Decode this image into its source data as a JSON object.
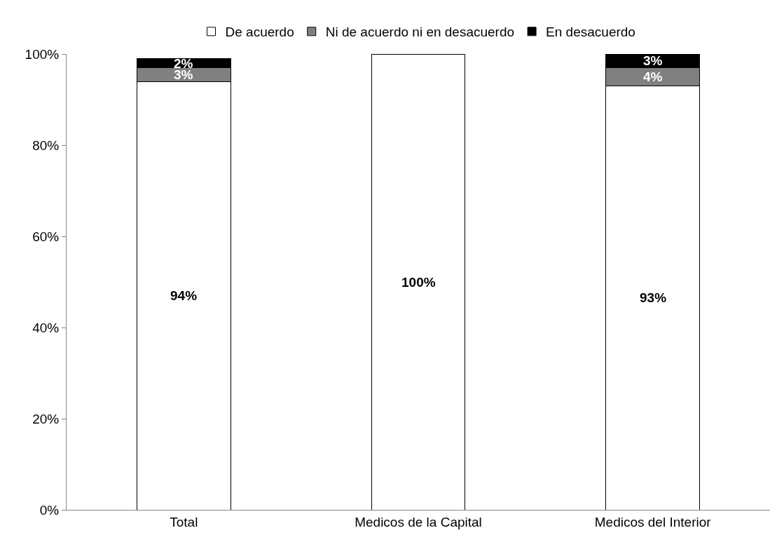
{
  "chart_data": {
    "type": "bar",
    "stacked": true,
    "categories": [
      "Total",
      "Medicos de la Capital",
      "Medicos del Interior"
    ],
    "series": [
      {
        "name": "De acuerdo",
        "color": "#ffffff",
        "values": [
          94,
          100,
          93
        ],
        "value_labels": [
          "94%",
          "100%",
          "93%"
        ]
      },
      {
        "name": "Ni de acuerdo ni en desacuerdo",
        "color": "#808080",
        "values": [
          3,
          0,
          4
        ],
        "value_labels": [
          "3%",
          null,
          "4%"
        ]
      },
      {
        "name": "En desacuerdo",
        "color": "#000000",
        "values": [
          2,
          0,
          3
        ],
        "value_labels": [
          "2%",
          null,
          "3%"
        ]
      }
    ],
    "ylim": [
      0,
      100
    ],
    "yticks": [
      {
        "value": 0,
        "label": "0%"
      },
      {
        "value": 20,
        "label": "20%"
      },
      {
        "value": 40,
        "label": "40%"
      },
      {
        "value": 60,
        "label": "60%"
      },
      {
        "value": 80,
        "label": "80%"
      },
      {
        "value": 100,
        "label": "100%"
      }
    ],
    "grid": false,
    "legend": "top"
  }
}
